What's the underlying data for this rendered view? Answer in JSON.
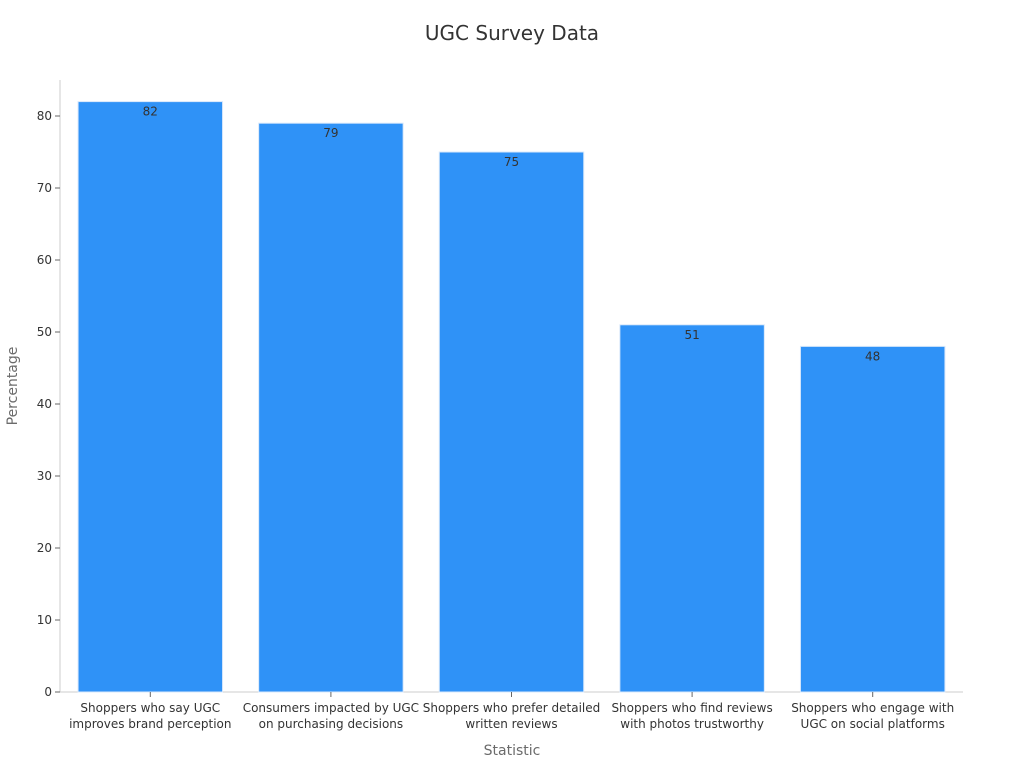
{
  "chart_data": {
    "type": "bar",
    "title": "UGC Survey Data",
    "xlabel": "Statistic",
    "ylabel": "Percentage",
    "ylim": [
      0,
      85
    ],
    "yticks": [
      0,
      10,
      20,
      30,
      40,
      50,
      60,
      70,
      80
    ],
    "grid": false,
    "bar_color": "#2f92f7",
    "categories": [
      [
        "Shoppers who say UGC",
        "improves brand perception"
      ],
      [
        "Consumers impacted by UGC",
        "on purchasing decisions"
      ],
      [
        "Shoppers who prefer detailed",
        "written reviews"
      ],
      [
        "Shoppers who find reviews",
        "with photos trustworthy"
      ],
      [
        "Shoppers who engage with",
        "UGC on social platforms"
      ]
    ],
    "values": [
      82,
      79,
      75,
      51,
      48
    ]
  }
}
